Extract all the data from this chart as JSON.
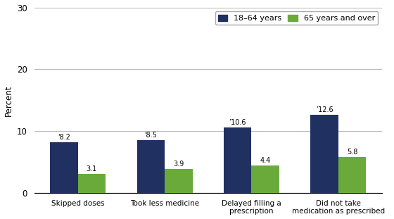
{
  "categories": [
    "Skipped doses",
    "Took less medicine",
    "Delayed filling a\nprescription",
    "Did not take\nmedication as prescribed"
  ],
  "series": [
    {
      "label": "18–64 years",
      "values": [
        8.2,
        8.5,
        10.6,
        12.6
      ],
      "color": "#1f3061",
      "annotations": [
        "'8.2",
        "'8.5",
        "’10.6",
        "’12.6"
      ]
    },
    {
      "label": "65 years and over",
      "values": [
        3.1,
        3.9,
        4.4,
        5.8
      ],
      "color": "#6aaa3a",
      "annotations": [
        "3.1",
        "3.9",
        "4.4",
        "5.8"
      ]
    }
  ],
  "ylabel": "Percent",
  "ylim": [
    0,
    30
  ],
  "yticks": [
    0,
    10,
    20,
    30
  ],
  "bar_width": 0.32,
  "background_color": "#ffffff",
  "annotation_fontsize": 7.0,
  "ylabel_fontsize": 8.5,
  "xtick_fontsize": 7.5,
  "ytick_fontsize": 8.5,
  "legend_fontsize": 8.0,
  "border_color": "#aaaaaa"
}
